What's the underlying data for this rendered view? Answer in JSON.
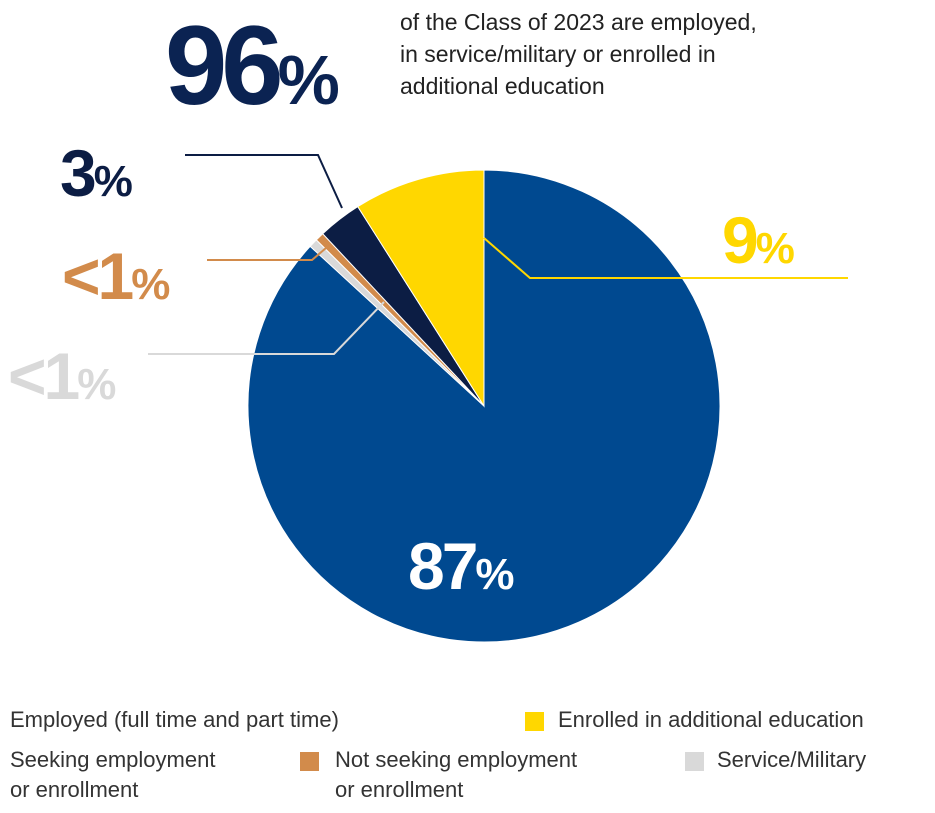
{
  "headline": {
    "value": "96",
    "unit": "%",
    "text_lines": [
      "of the Class of 2023 are employed,",
      "in service/military or enrolled in",
      "additional education"
    ]
  },
  "callouts": {
    "employed": {
      "value": "87",
      "unit": "%"
    },
    "enrolled": {
      "value": "9",
      "unit": "%"
    },
    "seeking": {
      "value": "3",
      "unit": "%"
    },
    "not_seeking": {
      "value": "<1",
      "unit": "%"
    },
    "service": {
      "value": "<1",
      "unit": "%"
    }
  },
  "legend": {
    "employed": "Employed (full time and part time)",
    "enrolled": "Enrolled in additional education",
    "seeking_lines": [
      "Seeking employment",
      "or enrollment"
    ],
    "not_seeking_lines": [
      "Not seeking employment",
      "or enrollment"
    ],
    "service": "Service/Military"
  },
  "chart_data": {
    "type": "pie",
    "start": "12 o'clock, clockwise",
    "categories": [
      "Employed (full time and part time)",
      "Service/Military",
      "Not seeking employment or enrollment",
      "Seeking employment or enrollment",
      "Enrolled in additional education"
    ],
    "values": [
      87,
      0.6,
      0.6,
      3,
      9
    ],
    "labels": [
      "87%",
      "<1%",
      "<1%",
      "3%",
      "9%"
    ],
    "colors": [
      "#004990",
      "#d9d9d9",
      "#d28b4b",
      "#0c1d44",
      "#ffd700"
    ]
  }
}
